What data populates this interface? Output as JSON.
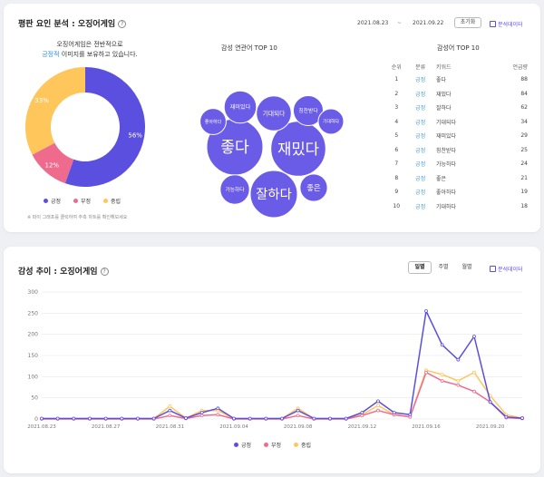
{
  "panel1": {
    "title": "평판 요인 분석 : 오징어게임",
    "help": "?",
    "date_start": "2021.08.23",
    "date_sep": "~",
    "date_end": "2021.09.22",
    "reset_label": "초기화",
    "download_label": "분석데이터",
    "summary_line1": "오징어게임은 전반적으로",
    "summary_pos": "긍정적",
    "summary_rest": " 이미지를 보유하고 있습니다.",
    "note": "※ 파이 그래프를 클릭하여 추측 차트를 확인해보세요",
    "wordcloud_title": "감성 연관어 TOP 10",
    "table_title": "감성어 TOP 10"
  },
  "panel2": {
    "title": "감성 추이 : 오징어게임",
    "help": "?",
    "tabs": [
      "일별",
      "주별",
      "월별"
    ],
    "download_label": "분석데이터"
  },
  "colors": {
    "positive": "#5b4fe0",
    "negative": "#ef6b8e",
    "neutral": "#ffc65c",
    "card": "#ffffff",
    "background": "#eef0f4",
    "grid": "#e6e6e6"
  },
  "icons": [
    "help-icon",
    "download-icon",
    "legend-dot"
  ],
  "rank_table": {
    "headers": [
      "순위",
      "분류",
      "키워드",
      "언급량"
    ],
    "rows": [
      {
        "rank": "1",
        "cat": "긍정",
        "kw": "좋다",
        "count": "88"
      },
      {
        "rank": "2",
        "cat": "긍정",
        "kw": "재밌다",
        "count": "84"
      },
      {
        "rank": "3",
        "cat": "긍정",
        "kw": "잘하다",
        "count": "62"
      },
      {
        "rank": "4",
        "cat": "긍정",
        "kw": "기대되다",
        "count": "34"
      },
      {
        "rank": "5",
        "cat": "긍정",
        "kw": "재미있다",
        "count": "29"
      },
      {
        "rank": "6",
        "cat": "긍정",
        "kw": "칭찬받다",
        "count": "25"
      },
      {
        "rank": "7",
        "cat": "긍정",
        "kw": "가능하다",
        "count": "24"
      },
      {
        "rank": "8",
        "cat": "긍정",
        "kw": "좋은",
        "count": "21"
      },
      {
        "rank": "9",
        "cat": "긍정",
        "kw": "좋아하다",
        "count": "19"
      },
      {
        "rank": "10",
        "cat": "긍정",
        "kw": "기대하다",
        "count": "18"
      }
    ]
  },
  "chart_data": [
    {
      "type": "pie",
      "title": "",
      "legend_position": "bottom",
      "slices": [
        {
          "name": "긍정",
          "value": 56,
          "label": "56%",
          "color": "#5b4fe0"
        },
        {
          "name": "부정",
          "value": 12,
          "label": "12%",
          "color": "#ef6b8e"
        },
        {
          "name": "중립",
          "value": 33,
          "label": "33%",
          "color": "#ffc65c"
        }
      ]
    },
    {
      "type": "scatter",
      "subtype": "bubble-cloud",
      "title": "감성 연관어 TOP 10",
      "bubbles": [
        {
          "word": "좋다",
          "value": 88
        },
        {
          "word": "재밌다",
          "value": 84
        },
        {
          "word": "잘하다",
          "value": 62
        },
        {
          "word": "기대되다",
          "value": 34
        },
        {
          "word": "재미있다",
          "value": 29
        },
        {
          "word": "칭찬받다",
          "value": 25
        },
        {
          "word": "가능하다",
          "value": 24
        },
        {
          "word": "좋은",
          "value": 21
        },
        {
          "word": "좋아하다",
          "value": 19
        },
        {
          "word": "기대하다",
          "value": 18
        }
      ]
    },
    {
      "type": "line",
      "title": "감성 추이 : 오징어게임",
      "ylim": [
        0,
        300
      ],
      "yticks": [
        "0",
        "50",
        "100",
        "150",
        "200",
        "250",
        "300"
      ],
      "x": [
        "2021.08.23",
        "2021.08.24",
        "2021.08.25",
        "2021.08.26",
        "2021.08.27",
        "2021.08.28",
        "2021.08.29",
        "2021.08.30",
        "2021.08.31",
        "2021.09.01",
        "2021.09.02",
        "2021.09.03",
        "2021.09.04",
        "2021.09.05",
        "2021.09.06",
        "2021.09.07",
        "2021.09.08",
        "2021.09.09",
        "2021.09.10",
        "2021.09.11",
        "2021.09.12",
        "2021.09.13",
        "2021.09.14",
        "2021.09.15",
        "2021.09.16",
        "2021.09.17",
        "2021.09.18",
        "2021.09.19",
        "2021.09.20",
        "2021.09.21",
        "2021.09.22"
      ],
      "xtick_labels": [
        "2021.08.23",
        "2021.08.27",
        "2021.08.31",
        "2021.09.04",
        "2021.09.08",
        "2021.09.12",
        "2021.09.16",
        "2021.09.20"
      ],
      "legend_position": "bottom",
      "grid": true,
      "series": [
        {
          "name": "긍정",
          "color": "#5b4fe0",
          "values": [
            1,
            1,
            1,
            1,
            1,
            1,
            1,
            1,
            20,
            2,
            15,
            25,
            1,
            1,
            1,
            1,
            20,
            1,
            1,
            1,
            15,
            42,
            15,
            10,
            255,
            175,
            140,
            195,
            40,
            5,
            2
          ]
        },
        {
          "name": "부정",
          "color": "#ef6b8e",
          "values": [
            0,
            0,
            0,
            0,
            0,
            0,
            0,
            0,
            8,
            1,
            8,
            10,
            0,
            0,
            0,
            0,
            8,
            0,
            0,
            0,
            8,
            20,
            10,
            5,
            110,
            90,
            80,
            65,
            40,
            3,
            1
          ]
        },
        {
          "name": "중립",
          "color": "#ffc65c",
          "values": [
            1,
            1,
            1,
            1,
            1,
            1,
            1,
            1,
            30,
            2,
            20,
            20,
            1,
            1,
            1,
            1,
            25,
            1,
            1,
            1,
            10,
            32,
            10,
            5,
            115,
            105,
            90,
            110,
            55,
            10,
            2
          ]
        }
      ]
    }
  ]
}
